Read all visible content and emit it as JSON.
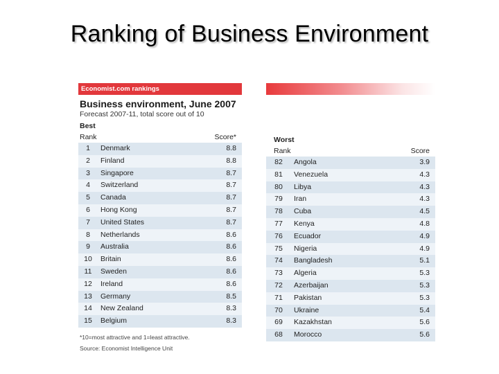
{
  "slide_title": "Ranking of Business Environment",
  "source_header": "Economist.com rankings",
  "chart_title": "Business environment, June 2007",
  "chart_subtitle": "Forecast 2007-11, total score out of 10",
  "best": {
    "label": "Best",
    "rank_header": "Rank",
    "score_header": "Score*",
    "rows": [
      {
        "rank": "1",
        "country": "Denmark",
        "score": "8.8"
      },
      {
        "rank": "2",
        "country": "Finland",
        "score": "8.8"
      },
      {
        "rank": "3",
        "country": "Singapore",
        "score": "8.7"
      },
      {
        "rank": "4",
        "country": "Switzerland",
        "score": "8.7"
      },
      {
        "rank": "5",
        "country": "Canada",
        "score": "8.7"
      },
      {
        "rank": "6",
        "country": "Hong Kong",
        "score": "8.7"
      },
      {
        "rank": "7",
        "country": "United States",
        "score": "8.7"
      },
      {
        "rank": "8",
        "country": "Netherlands",
        "score": "8.6"
      },
      {
        "rank": "9",
        "country": "Australia",
        "score": "8.6"
      },
      {
        "rank": "10",
        "country": "Britain",
        "score": "8.6"
      },
      {
        "rank": "11",
        "country": "Sweden",
        "score": "8.6"
      },
      {
        "rank": "12",
        "country": "Ireland",
        "score": "8.6"
      },
      {
        "rank": "13",
        "country": "Germany",
        "score": "8.5"
      },
      {
        "rank": "14",
        "country": "New Zealand",
        "score": "8.3"
      },
      {
        "rank": "15",
        "country": "Belgium",
        "score": "8.3"
      }
    ]
  },
  "worst": {
    "label": "Worst",
    "rank_header": "Rank",
    "score_header": "Score",
    "rows": [
      {
        "rank": "82",
        "country": "Angola",
        "score": "3.9"
      },
      {
        "rank": "81",
        "country": "Venezuela",
        "score": "4.3"
      },
      {
        "rank": "80",
        "country": "Libya",
        "score": "4.3"
      },
      {
        "rank": "79",
        "country": "Iran",
        "score": "4.3"
      },
      {
        "rank": "78",
        "country": "Cuba",
        "score": "4.5"
      },
      {
        "rank": "77",
        "country": "Kenya",
        "score": "4.8"
      },
      {
        "rank": "76",
        "country": "Ecuador",
        "score": "4.9"
      },
      {
        "rank": "75",
        "country": "Nigeria",
        "score": "4.9"
      },
      {
        "rank": "74",
        "country": "Bangladesh",
        "score": "5.1"
      },
      {
        "rank": "73",
        "country": "Algeria",
        "score": "5.3"
      },
      {
        "rank": "72",
        "country": "Azerbaijan",
        "score": "5.3"
      },
      {
        "rank": "71",
        "country": "Pakistan",
        "score": "5.3"
      },
      {
        "rank": "70",
        "country": "Ukraine",
        "score": "5.4"
      },
      {
        "rank": "69",
        "country": "Kazakhstan",
        "score": "5.6"
      },
      {
        "rank": "68",
        "country": "Morocco",
        "score": "5.6"
      }
    ]
  },
  "footnote_1": "*10=most attractive and 1=least attractive.",
  "footnote_2": "Source: Economist Intelligence Unit"
}
